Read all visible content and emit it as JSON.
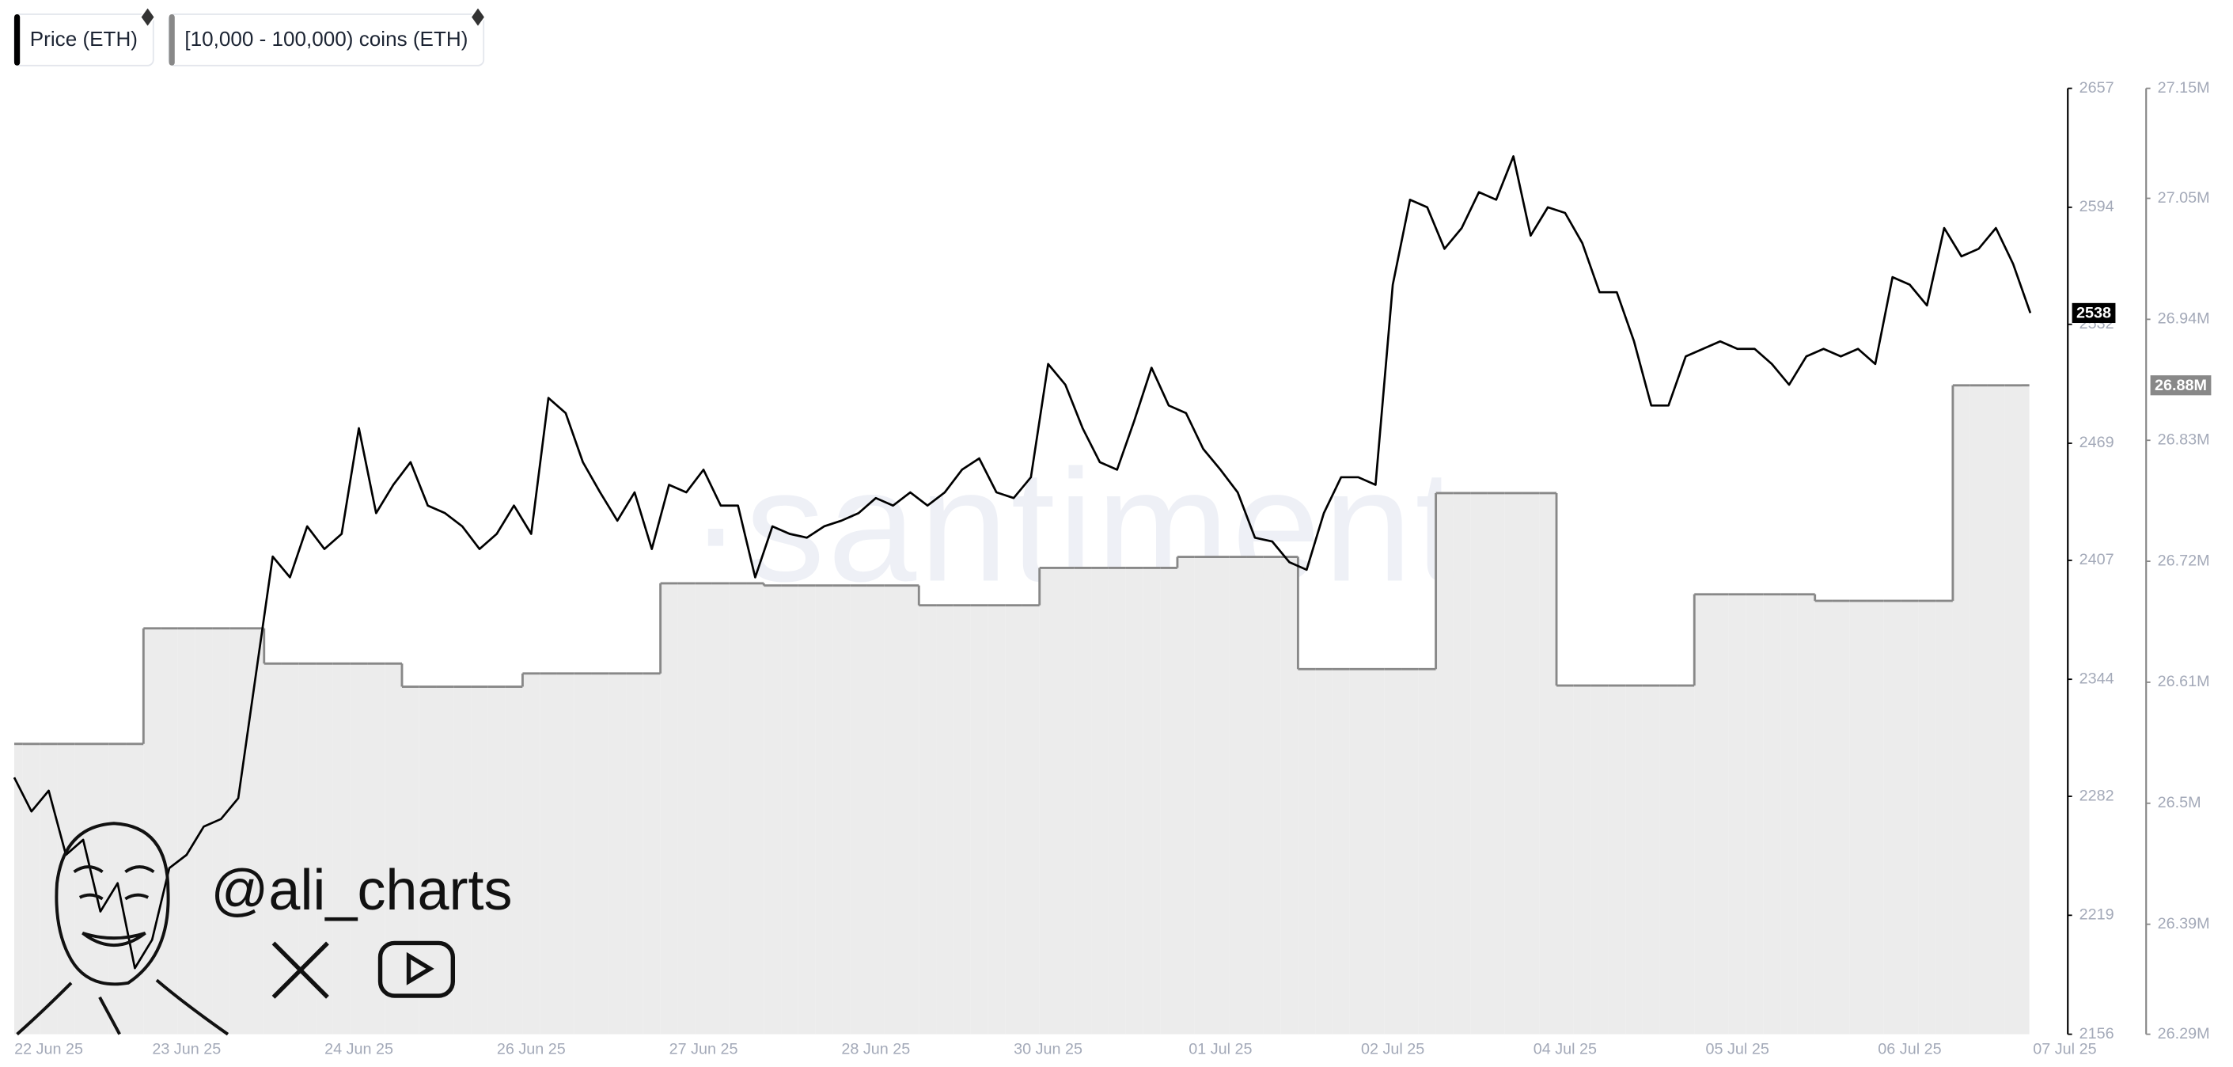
{
  "chart_data": {
    "type": "line",
    "watermark": "·santiment·",
    "annotations": [
      "@ali_charts"
    ],
    "categories": [
      null,
      null,
      "22 Jun 25",
      null,
      null,
      null,
      null,
      null,
      null,
      null,
      "23 Jun 25",
      null,
      null,
      null,
      null,
      null,
      null,
      null,
      null,
      null,
      "24 Jun 25",
      null,
      null,
      null,
      null,
      null,
      null,
      null,
      null,
      null,
      "26 Jun 25",
      null,
      null,
      null,
      null,
      null,
      null,
      null,
      null,
      null,
      "27 Jun 25",
      null,
      null,
      null,
      null,
      null,
      null,
      null,
      null,
      null,
      "28 Jun 25",
      null,
      null,
      null,
      null,
      null,
      null,
      null,
      null,
      null,
      "30 Jun 25",
      null,
      null,
      null,
      null,
      null,
      null,
      null,
      null,
      null,
      "01 Jul 25",
      null,
      null,
      null,
      null,
      null,
      null,
      null,
      null,
      null,
      "02 Jul 25",
      null,
      null,
      null,
      null,
      null,
      null,
      null,
      null,
      null,
      "04 Jul 25",
      null,
      null,
      null,
      null,
      null,
      null,
      null,
      null,
      null,
      "05 Jul 25",
      null,
      null,
      null,
      null,
      null,
      null,
      null,
      null,
      null,
      "06 Jul 25",
      null,
      null,
      null,
      null,
      null,
      null,
      null,
      null,
      "07 Jul 25"
    ],
    "series": [
      {
        "name": "Price (ETH)",
        "color": "#000000",
        "last_label": "2538",
        "values": [
          2292,
          2274,
          2285,
          2251,
          2259,
          2221,
          2236,
          2191,
          2206,
          2244,
          2251,
          2266,
          2270,
          2281,
          2345,
          2409,
          2398,
          2425,
          2413,
          2421,
          2477,
          2432,
          2447,
          2459,
          2436,
          2432,
          2425,
          2413,
          2421,
          2436,
          2421,
          2493,
          2485,
          2459,
          2443,
          2428,
          2443,
          2413,
          2447,
          2443,
          2455,
          2436,
          2436,
          2398,
          2425,
          2421,
          2419,
          2425,
          2428,
          2432,
          2440,
          2436,
          2443,
          2436,
          2443,
          2455,
          2461,
          2443,
          2440,
          2451,
          2511,
          2500,
          2477,
          2459,
          2455,
          2481,
          2509,
          2489,
          2485,
          2466,
          2455,
          2443,
          2419,
          2417,
          2406,
          2402,
          2432,
          2451,
          2451,
          2447,
          2553,
          2598,
          2594,
          2572,
          2583,
          2602,
          2598,
          2621,
          2579,
          2594,
          2591,
          2575,
          2549,
          2549,
          2523,
          2489,
          2489,
          2515,
          2519,
          2523,
          2519,
          2519,
          2511,
          2500,
          2515,
          2519,
          2515,
          2519,
          2511,
          2557,
          2553,
          2542,
          2583,
          2568,
          2572,
          2583,
          2564,
          2538,
          null,
          null
        ]
      },
      {
        "name": "[10,000 - 100,000) coins (ETH)",
        "color": "#888888",
        "fill_color": "#ececec",
        "axis": "y2",
        "step": true,
        "last_label": "26.88M",
        "values": [
          26554000,
          26554000,
          26554000,
          26554000,
          26554000,
          26554000,
          26554000,
          26554000,
          26659000,
          26659000,
          26659000,
          26659000,
          26659000,
          26659000,
          26659000,
          26627000,
          26627000,
          26627000,
          26627000,
          26627000,
          26627000,
          26627000,
          26627000,
          26606000,
          26606000,
          26606000,
          26606000,
          26606000,
          26606000,
          26606000,
          26618000,
          26618000,
          26618000,
          26618000,
          26618000,
          26618000,
          26618000,
          26618000,
          26700000,
          26700000,
          26700000,
          26700000,
          26700000,
          26700000,
          26698000,
          26698000,
          26698000,
          26698000,
          26698000,
          26698000,
          26698000,
          26698000,
          26698000,
          26680000,
          26680000,
          26680000,
          26680000,
          26680000,
          26680000,
          26680000,
          26714000,
          26714000,
          26714000,
          26714000,
          26714000,
          26714000,
          26714000,
          26714000,
          26724000,
          26724000,
          26724000,
          26724000,
          26724000,
          26724000,
          26724000,
          26622000,
          26622000,
          26622000,
          26622000,
          26622000,
          26622000,
          26622000,
          26622000,
          26782000,
          26782000,
          26782000,
          26782000,
          26782000,
          26782000,
          26782000,
          26607000,
          26607000,
          26607000,
          26607000,
          26607000,
          26607000,
          26607000,
          26607000,
          26690000,
          26690000,
          26690000,
          26690000,
          26690000,
          26690000,
          26690000,
          26684000,
          26684000,
          26684000,
          26684000,
          26684000,
          26684000,
          26684000,
          26684000,
          26880000,
          26880000,
          26880000,
          26880000,
          26880000,
          null,
          null
        ]
      }
    ],
    "ylim": [
      2156,
      2657
    ],
    "yticks": [
      2156,
      2219,
      2282,
      2344,
      2407,
      2469,
      2532,
      2594,
      2657
    ],
    "y2lim": [
      26290000,
      27150000
    ],
    "y2ticks": [
      {
        "value": 26290000,
        "label": "26.29M"
      },
      {
        "value": 26390000,
        "label": "26.39M"
      },
      {
        "value": 26500000,
        "label": "26.5M"
      },
      {
        "value": 26610000,
        "label": "26.61M"
      },
      {
        "value": 26720000,
        "label": "26.72M"
      },
      {
        "value": 26830000,
        "label": "26.83M"
      },
      {
        "value": 26940000,
        "label": "26.94M"
      },
      {
        "value": 27050000,
        "label": "27.05M"
      },
      {
        "value": 27150000,
        "label": "27.15M"
      }
    ],
    "grid": false
  }
}
